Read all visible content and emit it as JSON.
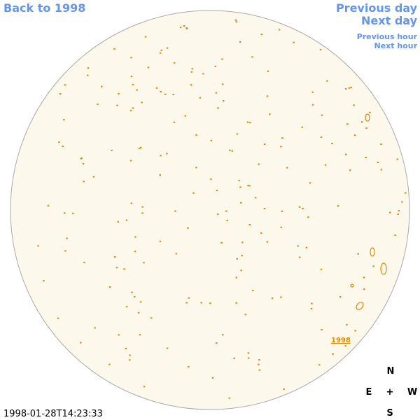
{
  "nav": {
    "back": "Back to 1998",
    "previous_day": "Previous day",
    "next_day": "Next day",
    "previous_hour": "Previous hour",
    "next_hour": "Next hour"
  },
  "disk": {
    "region_label": "1998"
  },
  "compass": {
    "north": "N",
    "east": "E",
    "center": "+",
    "west": "W",
    "south": "S"
  },
  "timestamp": "1998-01-28T14:23:33"
}
